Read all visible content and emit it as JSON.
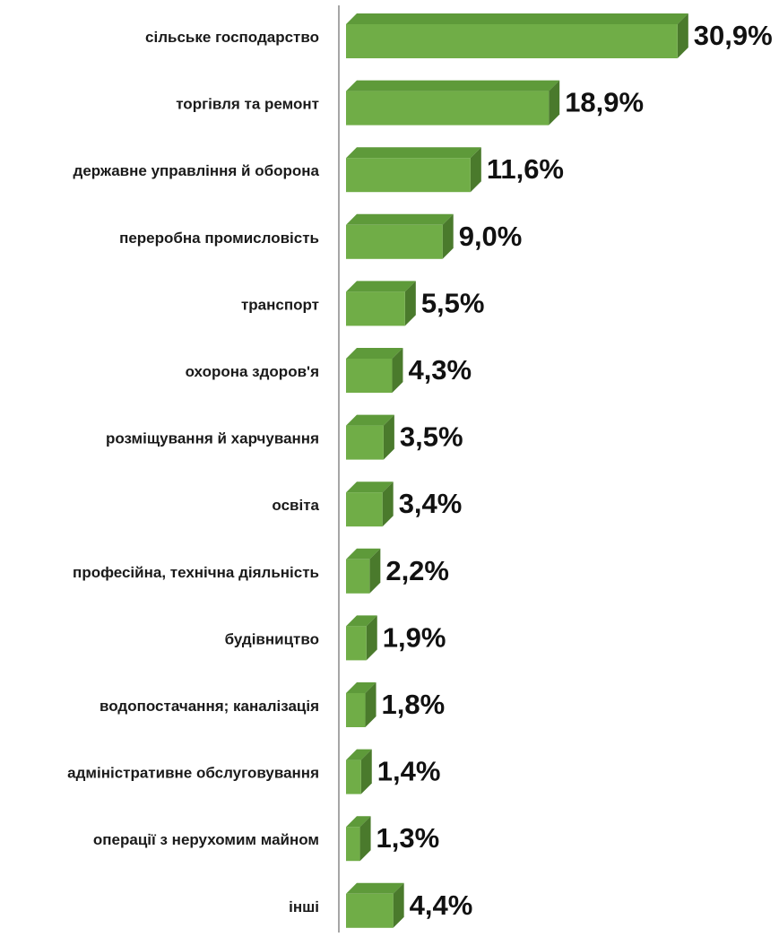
{
  "chart_data": {
    "type": "bar",
    "orientation": "horizontal",
    "style": "3d",
    "bar_color": "#70ad47",
    "bar_top_color": "#5e9a3a",
    "bar_side_color": "#4a7a2c",
    "axis_color": "#a6a6a6",
    "categories": [
      "сільське господарство",
      "торгівля та ремонт",
      "державне управління й оборона",
      "переробна промисловість",
      "транспорт",
      "охорона здоров'я",
      "розміщування й харчування",
      "освіта",
      "професійна, технічна діяльність",
      "будівництво",
      "водопостачання; каналізація",
      "адміністративне обслуговування",
      "операції з нерухомим майном",
      "інші"
    ],
    "values": [
      30.9,
      18.9,
      11.6,
      9.0,
      5.5,
      4.3,
      3.5,
      3.4,
      2.2,
      1.9,
      1.8,
      1.4,
      1.3,
      4.4
    ],
    "value_labels": [
      "30,9%",
      "18,9%",
      "11,6%",
      "9,0%",
      "5,5%",
      "4,3%",
      "3,5%",
      "3,4%",
      "2,2%",
      "1,9%",
      "1,8%",
      "1,4%",
      "1,3%",
      "4,4%"
    ],
    "unit": "%",
    "xlim": [
      0,
      31
    ],
    "grid": false,
    "legend": "none"
  }
}
